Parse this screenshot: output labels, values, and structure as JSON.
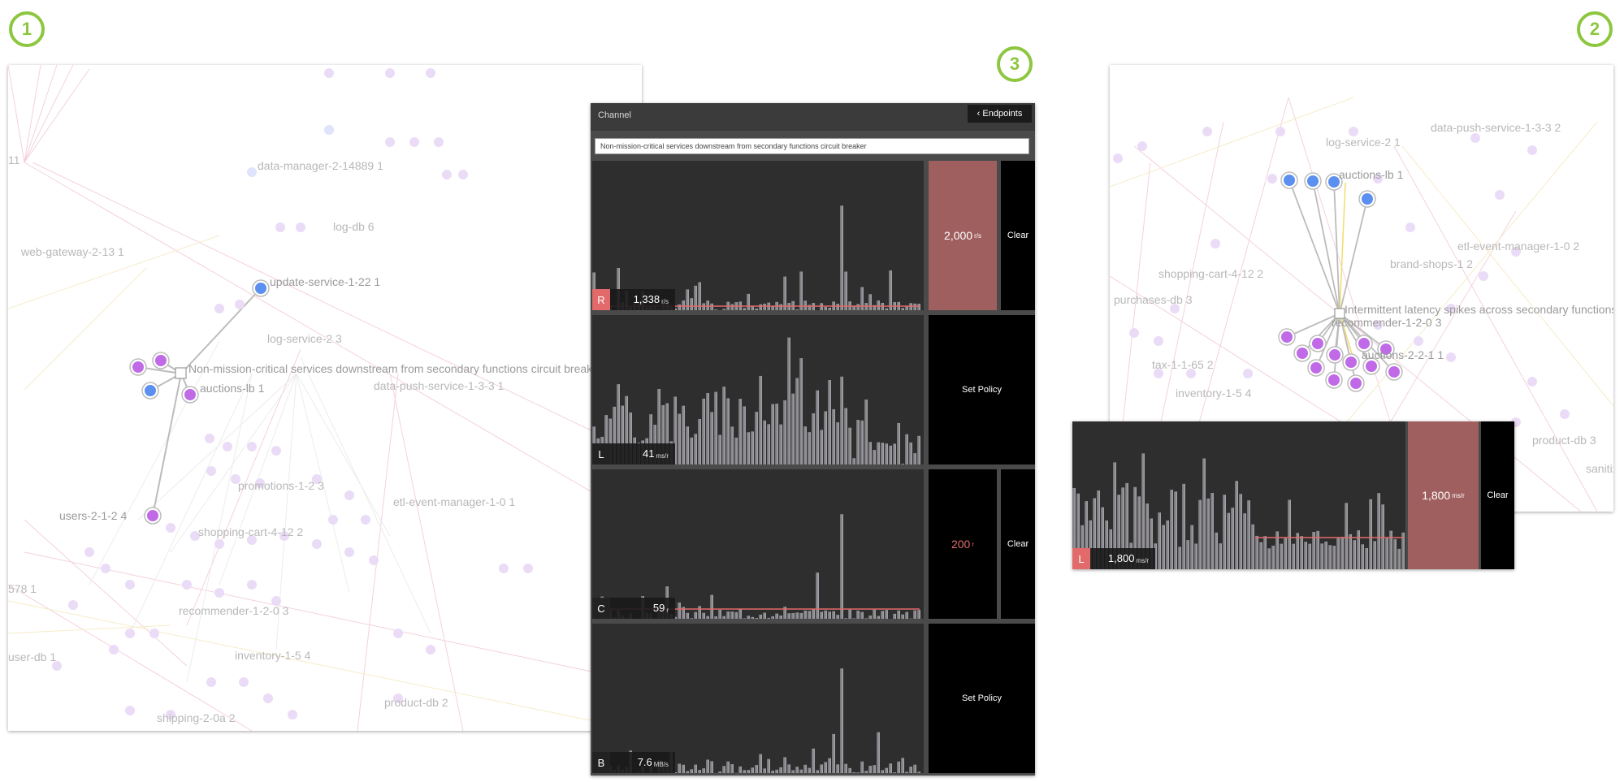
{
  "badges": [
    "1",
    "2",
    "3"
  ],
  "panel1": {
    "labels": [
      "11",
      "data-manager-2-14889 1",
      "log-db 6",
      "web-gateway-2-13 1",
      "update-service-1-22 1",
      "log-service-2 3",
      "Non-mission-critical services downstream from secondary functions circuit breaker",
      "auctions-lb 1",
      "data-push-service-1-3-3 1",
      "promotions-1-2 3",
      "etl-event-manager-1-0 1",
      "users-2-1-2 4",
      "shopping-cart-4-12 2",
      "578 1",
      "recommender-1-2-0 3",
      "user-db 1",
      "inventory-1-5 4",
      "shipping-2-0a 2",
      "product-db 2"
    ]
  },
  "panel2": {
    "labels": [
      "data-push-service-1-3-3 2",
      "log-service-2 1",
      "auctions-lb 1",
      "etl-event-manager-1-0 2",
      "shopping-cart-4-12 2",
      "brand-shops-1 2",
      "purchases-db 3",
      "Intermittent latency spikes across secondary functions",
      "recommender-1-2-0 3",
      "auctions-2-2-1 1",
      "tax-1-1-65 2",
      "inventory-1-5 4",
      "product-db 3",
      "sanitiz"
    ]
  },
  "channel": {
    "title": "Channel",
    "endpoints_label": "‹ Endpoints",
    "filter_value": "Non-mission-critical services downstream from secondary functions circuit breaker",
    "rows": [
      {
        "letter": "R",
        "value": "1,338",
        "unit": "r/s",
        "threshold": "2,000",
        "threshold_unit": "r/s",
        "clear": "Clear",
        "policy": ""
      },
      {
        "letter": "L",
        "value": "41",
        "unit": "ms/r",
        "threshold": "",
        "threshold_unit": "",
        "clear": "",
        "policy": "Set Policy"
      },
      {
        "letter": "C",
        "value": "59",
        "unit": "r",
        "threshold": "200",
        "threshold_unit": "r",
        "clear": "Clear",
        "policy": ""
      },
      {
        "letter": "B",
        "value": "7.6",
        "unit": "MB/s",
        "threshold": "",
        "threshold_unit": "",
        "clear": "",
        "policy": "Set Policy"
      }
    ]
  },
  "mini": {
    "letter": "L",
    "value": "1,800",
    "unit": "ms/r",
    "threshold": "1,800",
    "threshold_unit": "ms/r",
    "clear": "Clear"
  },
  "colors": {
    "accent_green": "#8dc63f",
    "alert_red": "#e26a6a",
    "threshold_fill": "#a05f5f",
    "node_blue": "#5b8ff0",
    "node_purple": "#c06ae8"
  }
}
